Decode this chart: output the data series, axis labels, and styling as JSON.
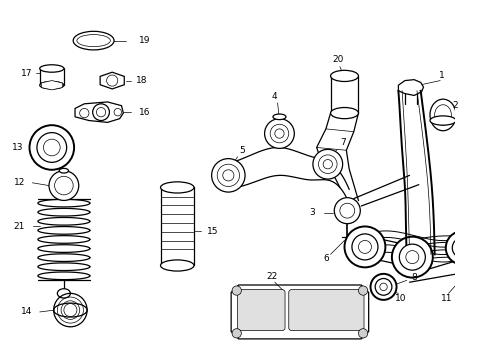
{
  "background_color": "#ffffff",
  "line_color": "#000000",
  "fig_width": 4.89,
  "fig_height": 3.6,
  "dpi": 100,
  "lw_thin": 0.5,
  "lw_med": 0.9,
  "lw_thick": 1.4,
  "font_size": 6.5
}
